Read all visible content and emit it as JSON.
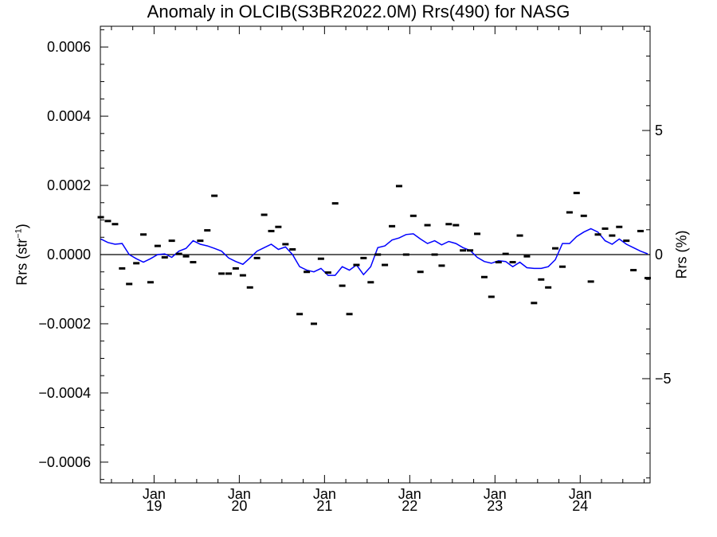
{
  "chart_data": {
    "type": "line",
    "title": "Anomaly in OLCIB(S3BR2022.0M) Rrs(490) for NASG",
    "ylabel_left_main": "Rrs (str",
    "ylabel_left_sup": "−1",
    "ylabel_left_close": ")",
    "ylabel_right": "Rrs (%)",
    "ylim": [
      -0.00066,
      0.00066
    ],
    "ylim_right": [
      -9.2,
      9.2
    ],
    "xlim": [
      2018.37,
      2024.82
    ],
    "left_ticks": [
      {
        "value": -0.0006,
        "label": "−0.0006"
      },
      {
        "value": -0.0004,
        "label": "−0.0004"
      },
      {
        "value": -0.0002,
        "label": "−0.0002"
      },
      {
        "value": 0.0,
        "label": "0.0000"
      },
      {
        "value": 0.0002,
        "label": "0.0002"
      },
      {
        "value": 0.0004,
        "label": "0.0004"
      },
      {
        "value": 0.0006,
        "label": "0.0006"
      }
    ],
    "right_ticks": [
      {
        "value": -5,
        "label": "−5"
      },
      {
        "value": 0,
        "label": "0"
      },
      {
        "value": 5,
        "label": "5"
      }
    ],
    "x_ticks": [
      {
        "value": 2019.0,
        "month": "Jan",
        "year": "19"
      },
      {
        "value": 2020.0,
        "month": "Jan",
        "year": "20"
      },
      {
        "value": 2021.0,
        "month": "Jan",
        "year": "21"
      },
      {
        "value": 2022.0,
        "month": "Jan",
        "year": "22"
      },
      {
        "value": 2023.0,
        "month": "Jan",
        "year": "23"
      },
      {
        "value": 2024.0,
        "month": "Jan",
        "year": "24"
      }
    ],
    "zero_line": true,
    "series": [
      {
        "kind": "points",
        "color": "#000000",
        "x": [
          2018.375,
          2018.458,
          2018.542,
          2018.625,
          2018.708,
          2018.792,
          2018.875,
          2018.958,
          2019.042,
          2019.125,
          2019.208,
          2019.292,
          2019.375,
          2019.458,
          2019.542,
          2019.625,
          2019.708,
          2019.792,
          2019.875,
          2019.958,
          2020.042,
          2020.125,
          2020.208,
          2020.292,
          2020.375,
          2020.458,
          2020.542,
          2020.625,
          2020.708,
          2020.792,
          2020.875,
          2020.958,
          2021.042,
          2021.125,
          2021.208,
          2021.292,
          2021.375,
          2021.458,
          2021.542,
          2021.625,
          2021.708,
          2021.792,
          2021.875,
          2021.958,
          2022.042,
          2022.125,
          2022.208,
          2022.292,
          2022.375,
          2022.458,
          2022.542,
          2022.625,
          2022.708,
          2022.792,
          2022.875,
          2022.958,
          2023.042,
          2023.125,
          2023.208,
          2023.292,
          2023.375,
          2023.458,
          2023.542,
          2023.625,
          2023.708,
          2023.792,
          2023.875,
          2023.958,
          2024.042,
          2024.125,
          2024.208,
          2024.292,
          2024.375,
          2024.458,
          2024.542,
          2024.625,
          2024.708,
          2024.792
        ],
        "y": [
          0.000108,
          9.7e-05,
          8.8e-05,
          -4e-05,
          -8.5e-05,
          -2.5e-05,
          5.8e-05,
          -8e-05,
          2.5e-05,
          -8e-06,
          4e-05,
          2e-06,
          -5e-06,
          -2.2e-05,
          4e-05,
          7e-05,
          0.00017,
          -5.5e-05,
          -5.5e-05,
          -4e-05,
          -6e-05,
          -9.5e-05,
          -1e-05,
          0.000115,
          6.8e-05,
          8e-05,
          3e-05,
          1.5e-05,
          -0.000172,
          -5e-05,
          -0.0002,
          -1.2e-05,
          -5.2e-05,
          0.000148,
          -9e-05,
          -0.000172,
          -3e-05,
          -1e-05,
          -8e-05,
          0.0,
          -3e-05,
          8.2e-05,
          0.000198,
          0.0,
          0.000112,
          -5e-05,
          8.5e-05,
          0.0,
          -3.2e-05,
          8.8e-05,
          8.5e-05,
          1.2e-05,
          1.2e-05,
          6e-05,
          -6.5e-05,
          -0.000122,
          -2.2e-05,
          2e-06,
          -2.2e-05,
          5.5e-05,
          -5e-06,
          -0.00014,
          -7.2e-05,
          -9.5e-05,
          1.8e-05,
          -3.5e-05,
          0.000122,
          0.000178,
          0.000112,
          -7.8e-05,
          5.8e-05,
          7.5e-05,
          5.5e-05,
          8e-05,
          4e-05,
          -4.5e-05,
          6.8e-05,
          -6.8e-05
        ]
      },
      {
        "kind": "line",
        "color": "#0000ff",
        "x": [
          2018.375,
          2018.458,
          2018.542,
          2018.625,
          2018.708,
          2018.792,
          2018.875,
          2018.958,
          2019.042,
          2019.125,
          2019.208,
          2019.292,
          2019.375,
          2019.458,
          2019.542,
          2019.625,
          2019.708,
          2019.792,
          2019.875,
          2019.958,
          2020.042,
          2020.125,
          2020.208,
          2020.292,
          2020.375,
          2020.458,
          2020.542,
          2020.625,
          2020.708,
          2020.792,
          2020.875,
          2020.958,
          2021.042,
          2021.125,
          2021.208,
          2021.292,
          2021.375,
          2021.458,
          2021.542,
          2021.625,
          2021.708,
          2021.792,
          2021.875,
          2021.958,
          2022.042,
          2022.125,
          2022.208,
          2022.292,
          2022.375,
          2022.458,
          2022.542,
          2022.625,
          2022.708,
          2022.792,
          2022.875,
          2022.958,
          2023.042,
          2023.125,
          2023.208,
          2023.292,
          2023.375,
          2023.458,
          2023.542,
          2023.625,
          2023.708,
          2023.792,
          2023.875,
          2023.958,
          2024.042,
          2024.125,
          2024.208,
          2024.292,
          2024.375,
          2024.458,
          2024.542,
          2024.625,
          2024.708,
          2024.792
        ],
        "y": [
          4.5e-05,
          3.5e-05,
          3e-05,
          3.2e-05,
          0.0,
          -1.2e-05,
          -2.2e-05,
          -1.2e-05,
          0.0,
          2e-06,
          -8e-06,
          1e-05,
          1.8e-05,
          4e-05,
          3e-05,
          2.5e-05,
          1.8e-05,
          1e-05,
          -1e-05,
          -2e-05,
          -2.8e-05,
          -1e-05,
          1e-05,
          2e-05,
          3e-05,
          1.5e-05,
          2.2e-05,
          0.0,
          -3.5e-05,
          -4.5e-05,
          -5e-05,
          -4e-05,
          -6e-05,
          -6e-05,
          -3.5e-05,
          -4.5e-05,
          -3e-05,
          -5.8e-05,
          -3.5e-05,
          2e-05,
          2.5e-05,
          4.2e-05,
          4.8e-05,
          5.8e-05,
          6e-05,
          4.5e-05,
          3.2e-05,
          4e-05,
          2.8e-05,
          3.8e-05,
          3.2e-05,
          2e-05,
          1.2e-05,
          -8e-06,
          -2e-05,
          -2.5e-05,
          -1.8e-05,
          -2e-05,
          -3.5e-05,
          -2.2e-05,
          -3.8e-05,
          -4e-05,
          -4e-05,
          -3.5e-05,
          -1.5e-05,
          3.2e-05,
          3.2e-05,
          5.2e-05,
          6.5e-05,
          7.5e-05,
          6.5e-05,
          4e-05,
          3e-05,
          4.5e-05,
          3e-05,
          2e-05,
          1e-05,
          2e-06
        ]
      }
    ]
  }
}
